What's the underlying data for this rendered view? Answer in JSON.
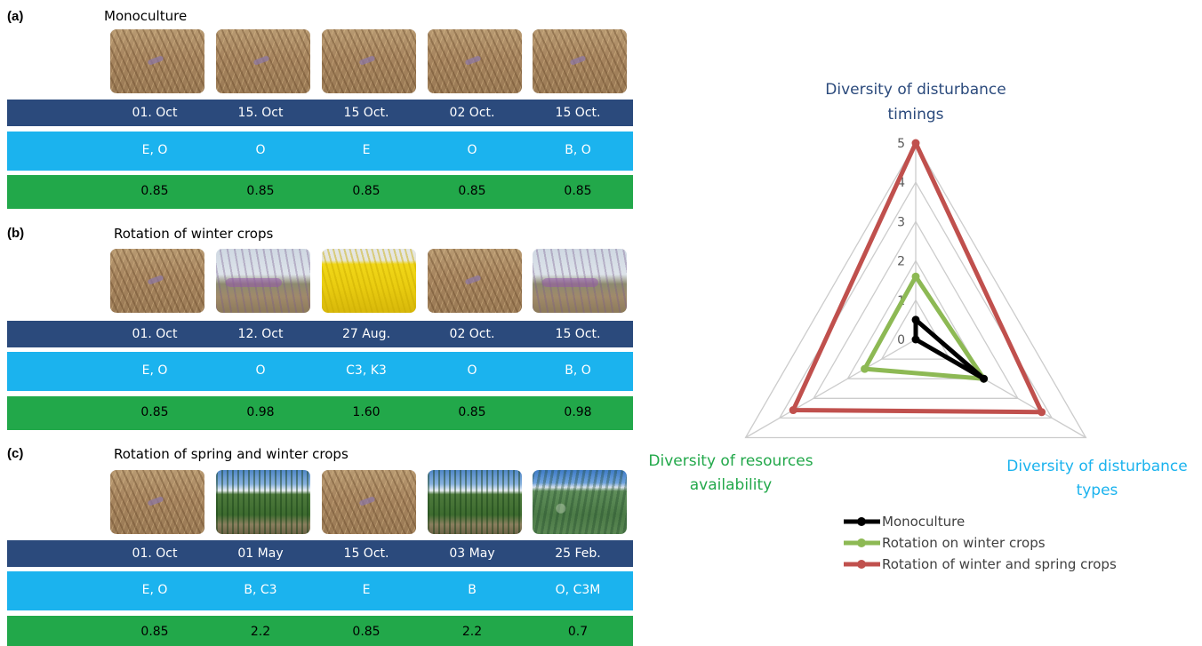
{
  "panels": [
    {
      "label": "(a)",
      "title": "Monoculture",
      "photos": [
        "wheat",
        "wheat",
        "wheat",
        "wheat",
        "wheat"
      ],
      "dates": [
        "01. Oct",
        "15. Oct",
        "15 Oct.",
        "02 Oct.",
        "15 Oct."
      ],
      "disturbance_types": [
        "E, O",
        "O",
        "E",
        "O",
        "B, O"
      ],
      "resource_values": [
        "0.85",
        "0.85",
        "0.85",
        "0.85",
        "0.85"
      ]
    },
    {
      "label": "(b)",
      "title": "Rotation of winter crops",
      "photos": [
        "wheat",
        "weeds",
        "rapeseed",
        "wheat",
        "weeds"
      ],
      "dates": [
        "01. Oct",
        "12. Oct",
        "27 Aug.",
        "02 Oct.",
        "15 Oct."
      ],
      "disturbance_types": [
        "E, O",
        "O",
        "C3, K3",
        "O",
        "B, O"
      ],
      "resource_values": [
        "0.85",
        "0.98",
        "1.60",
        "0.85",
        "0.98"
      ]
    },
    {
      "label": "(c)",
      "title": "Rotation of spring and winter crops",
      "photos": [
        "wheat",
        "maize",
        "wheat",
        "maize",
        "soy"
      ],
      "dates": [
        "01. Oct",
        "01 May",
        "15 Oct.",
        "03 May",
        "25 Feb."
      ],
      "disturbance_types": [
        "E, O",
        "B, C3",
        "E",
        "B",
        "O, C3M"
      ],
      "resource_values": [
        "0.85",
        "2.2",
        "0.85",
        "2.2",
        "0.7"
      ]
    }
  ],
  "colors": {
    "dates_band": "#2b4a7c",
    "types_band": "#1bb3ee",
    "resources_band": "#22a84a",
    "grid": "#cccccc"
  },
  "chart_data": {
    "type": "radar",
    "axes": [
      {
        "label": "Diversity of disturbance timings",
        "color": "#2b4a7c"
      },
      {
        "label": "Diversity of disturbance types",
        "color": "#1bb3ee"
      },
      {
        "label": "Diversity of resources availability",
        "color": "#22a84a"
      }
    ],
    "scale": {
      "min": 0,
      "max": 5,
      "ticks": [
        "0",
        "1",
        "2",
        "3",
        "4",
        "5"
      ]
    },
    "grid": true,
    "legend_position": "bottom",
    "series": [
      {
        "name": "Monoculture",
        "values": [
          0.5,
          2.0,
          0.0
        ],
        "color": "#000000"
      },
      {
        "name": "Rotation on winter crops",
        "values": [
          1.6,
          2.0,
          1.5
        ],
        "color": "#8db954"
      },
      {
        "name": "Rotation of winter and spring crops",
        "values": [
          5.0,
          3.7,
          3.6
        ],
        "color": "#c0504d"
      }
    ]
  }
}
